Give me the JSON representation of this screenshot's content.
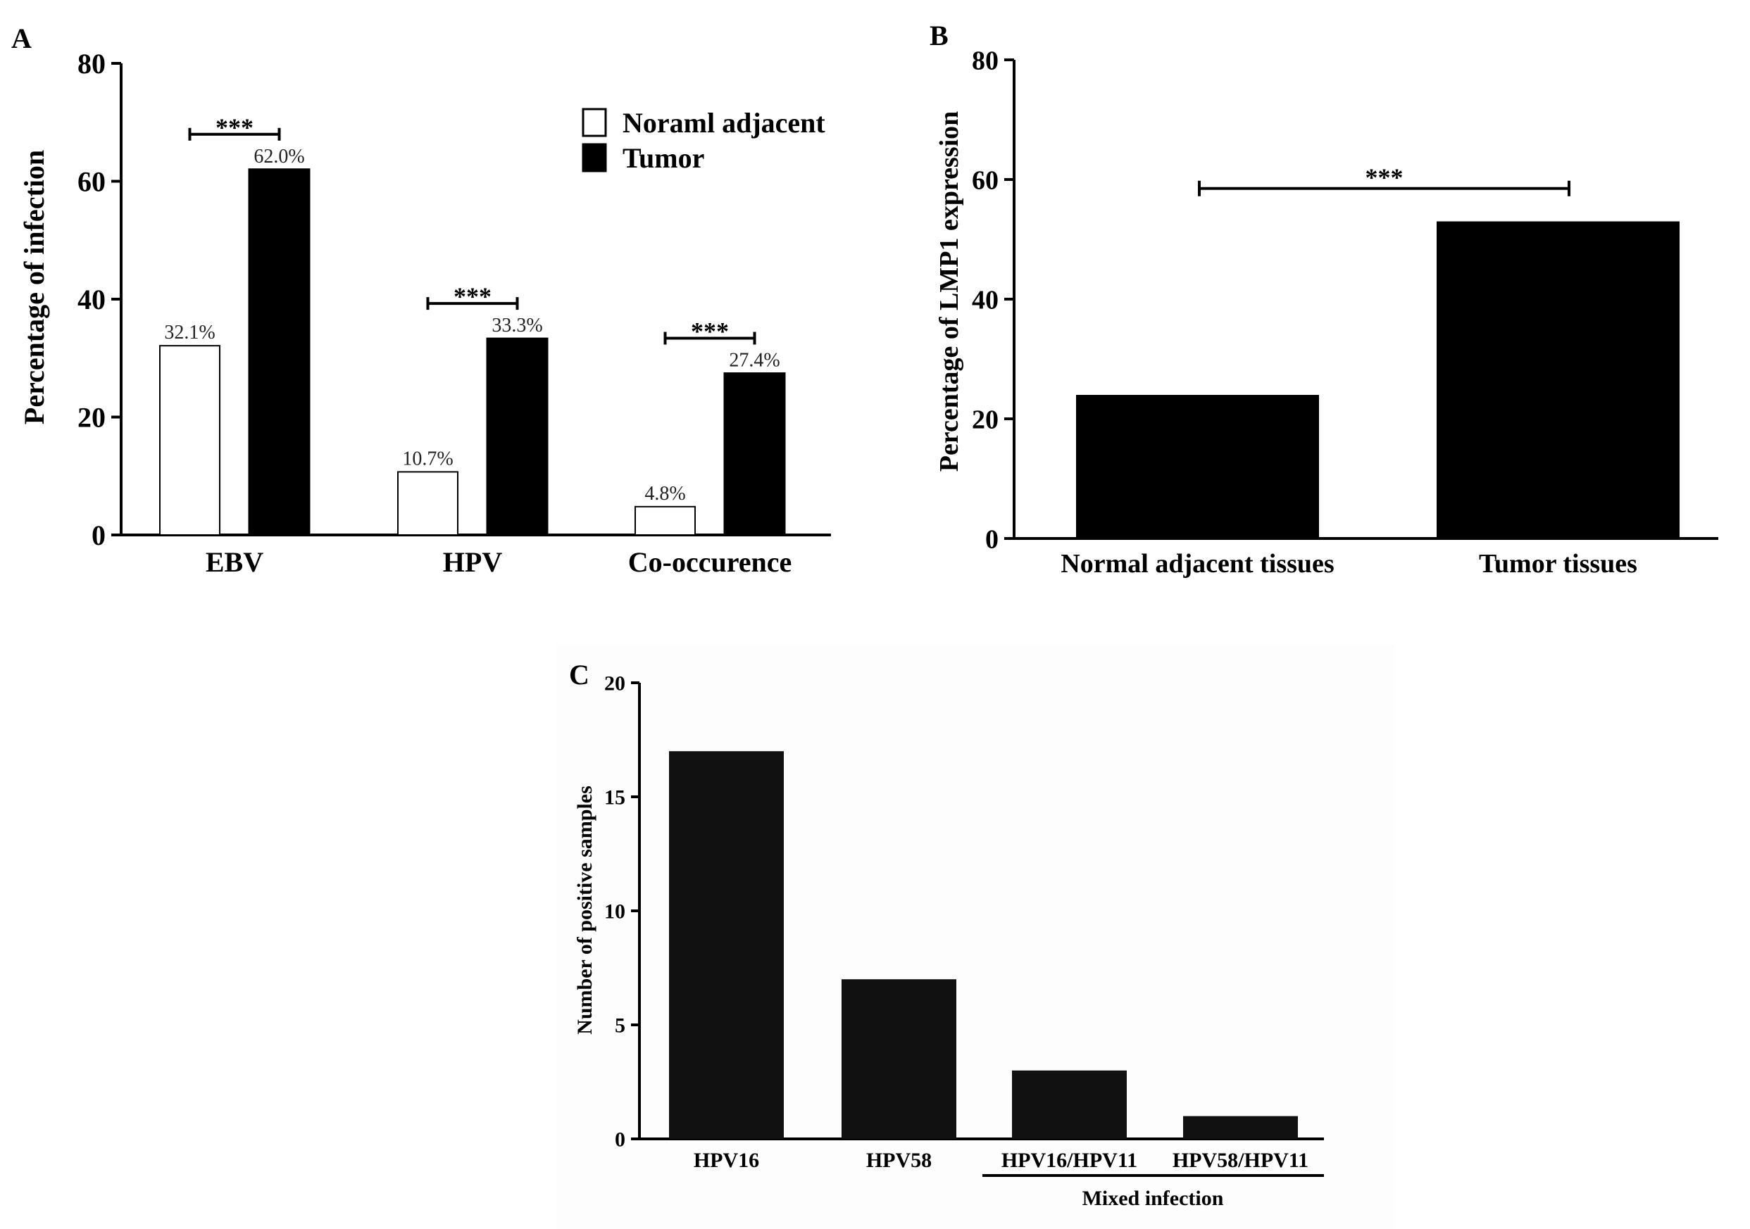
{
  "chart_data": [
    {
      "panel": "A",
      "type": "bar",
      "title": "",
      "xlabel": "",
      "ylabel": "Percentage of infection",
      "ylim": [
        0,
        80
      ],
      "yticks": [
        0,
        20,
        40,
        60,
        80
      ],
      "categories": [
        "EBV",
        "HPV",
        "Co-occurence"
      ],
      "series": [
        {
          "name": "Noraml adjacent",
          "color": "#ffffff",
          "values": [
            32.1,
            10.7,
            4.8
          ],
          "labels": [
            "32.1%",
            "10.7%",
            "4.8%"
          ]
        },
        {
          "name": "Tumor",
          "color": "#000000",
          "values": [
            62.0,
            33.3,
            27.4
          ],
          "labels": [
            "62.0%",
            "33.3%",
            "27.4%"
          ]
        }
      ],
      "significance": [
        "***",
        "***",
        "***"
      ],
      "legend": "top-right"
    },
    {
      "panel": "B",
      "type": "bar",
      "title": "",
      "xlabel": "",
      "ylabel": "Percentage of LMP1 expression",
      "ylim": [
        0,
        80
      ],
      "yticks": [
        0,
        20,
        40,
        60,
        80
      ],
      "categories": [
        "Normal adjacent tissues",
        "Tumor tissues"
      ],
      "values": [
        24,
        53
      ],
      "color": "#000000",
      "significance": "***"
    },
    {
      "panel": "C",
      "type": "bar",
      "title": "",
      "xlabel": "",
      "ylabel": "Number of positive samples",
      "ylim": [
        0,
        20
      ],
      "yticks": [
        0,
        5,
        10,
        15,
        20
      ],
      "categories": [
        "HPV16",
        "HPV58",
        "HPV16/HPV11",
        "HPV58/HPV11"
      ],
      "values": [
        17,
        7,
        3,
        1
      ],
      "color": "#111111",
      "group_label": "Mixed infection"
    }
  ]
}
